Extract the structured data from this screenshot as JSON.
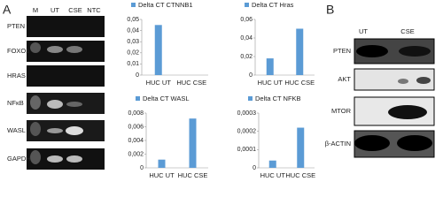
{
  "panels": [
    "A",
    "B"
  ],
  "gel": {
    "columns": [
      "M",
      "UT",
      "CSE",
      "NTC"
    ],
    "rows": [
      "PTEN",
      "FOXO1",
      "HRAS",
      "NFκB",
      "WASL",
      "GAPDH"
    ]
  },
  "blot": {
    "columns": [
      "UT",
      "CSE"
    ],
    "rows": [
      "PTEN",
      "AKT",
      "MTOR",
      "β-ACTIN"
    ]
  },
  "chart_data": [
    {
      "type": "bar",
      "categories": [
        "HUC UT",
        "HUC CSE"
      ],
      "series": [
        {
          "name": "Delta CT CTNNB1",
          "color": "#5b9bd5",
          "values": [
            0.045,
            0
          ]
        }
      ],
      "ylim": [
        0,
        0.05
      ],
      "yticks": [
        0,
        {
          "value": 0.01,
          "label": "0,01"
        },
        {
          "value": 0.02,
          "label": "0,02"
        },
        {
          "value": 0.03,
          "label": "0,03"
        },
        {
          "value": 0.04,
          "label": "0,04"
        },
        {
          "value": 0.05,
          "label": "0,05"
        }
      ]
    },
    {
      "type": "bar",
      "categories": [
        "HUC UT",
        "HUC CSE"
      ],
      "series": [
        {
          "name": "Delta CT Hras",
          "color": "#5b9bd5",
          "values": [
            0.018,
            0.05
          ]
        }
      ],
      "ylim": [
        0,
        0.06
      ],
      "yticks": [
        0,
        {
          "value": 0.02,
          "label": "0,02"
        },
        {
          "value": 0.04,
          "label": "0,04"
        },
        {
          "value": 0.06,
          "label": "0,06"
        }
      ]
    },
    {
      "type": "bar",
      "categories": [
        "HUC UT",
        "HUC CSE"
      ],
      "series": [
        {
          "name": "Delta CT WASL",
          "color": "#5b9bd5",
          "values": [
            0.0012,
            0.0072
          ]
        }
      ],
      "ylim": [
        0,
        0.008
      ],
      "yticks": [
        0,
        {
          "value": 0.002,
          "label": "0,002"
        },
        {
          "value": 0.004,
          "label": "0,004"
        },
        {
          "value": 0.006,
          "label": "0,006"
        },
        {
          "value": 0.008,
          "label": "0,008"
        }
      ]
    },
    {
      "type": "bar",
      "categories": [
        "HUC UT",
        "HUC CSE"
      ],
      "series": [
        {
          "name": "Delta CT NFKB",
          "color": "#5b9bd5",
          "values": [
            4e-05,
            0.00022
          ]
        }
      ],
      "ylim": [
        0,
        0.0003
      ],
      "yticks": [
        0,
        {
          "value": 0.0001,
          "label": "0,0001"
        },
        {
          "value": 0.0002,
          "label": "0,0002"
        },
        {
          "value": 0.0003,
          "label": "0,0003"
        }
      ]
    }
  ]
}
